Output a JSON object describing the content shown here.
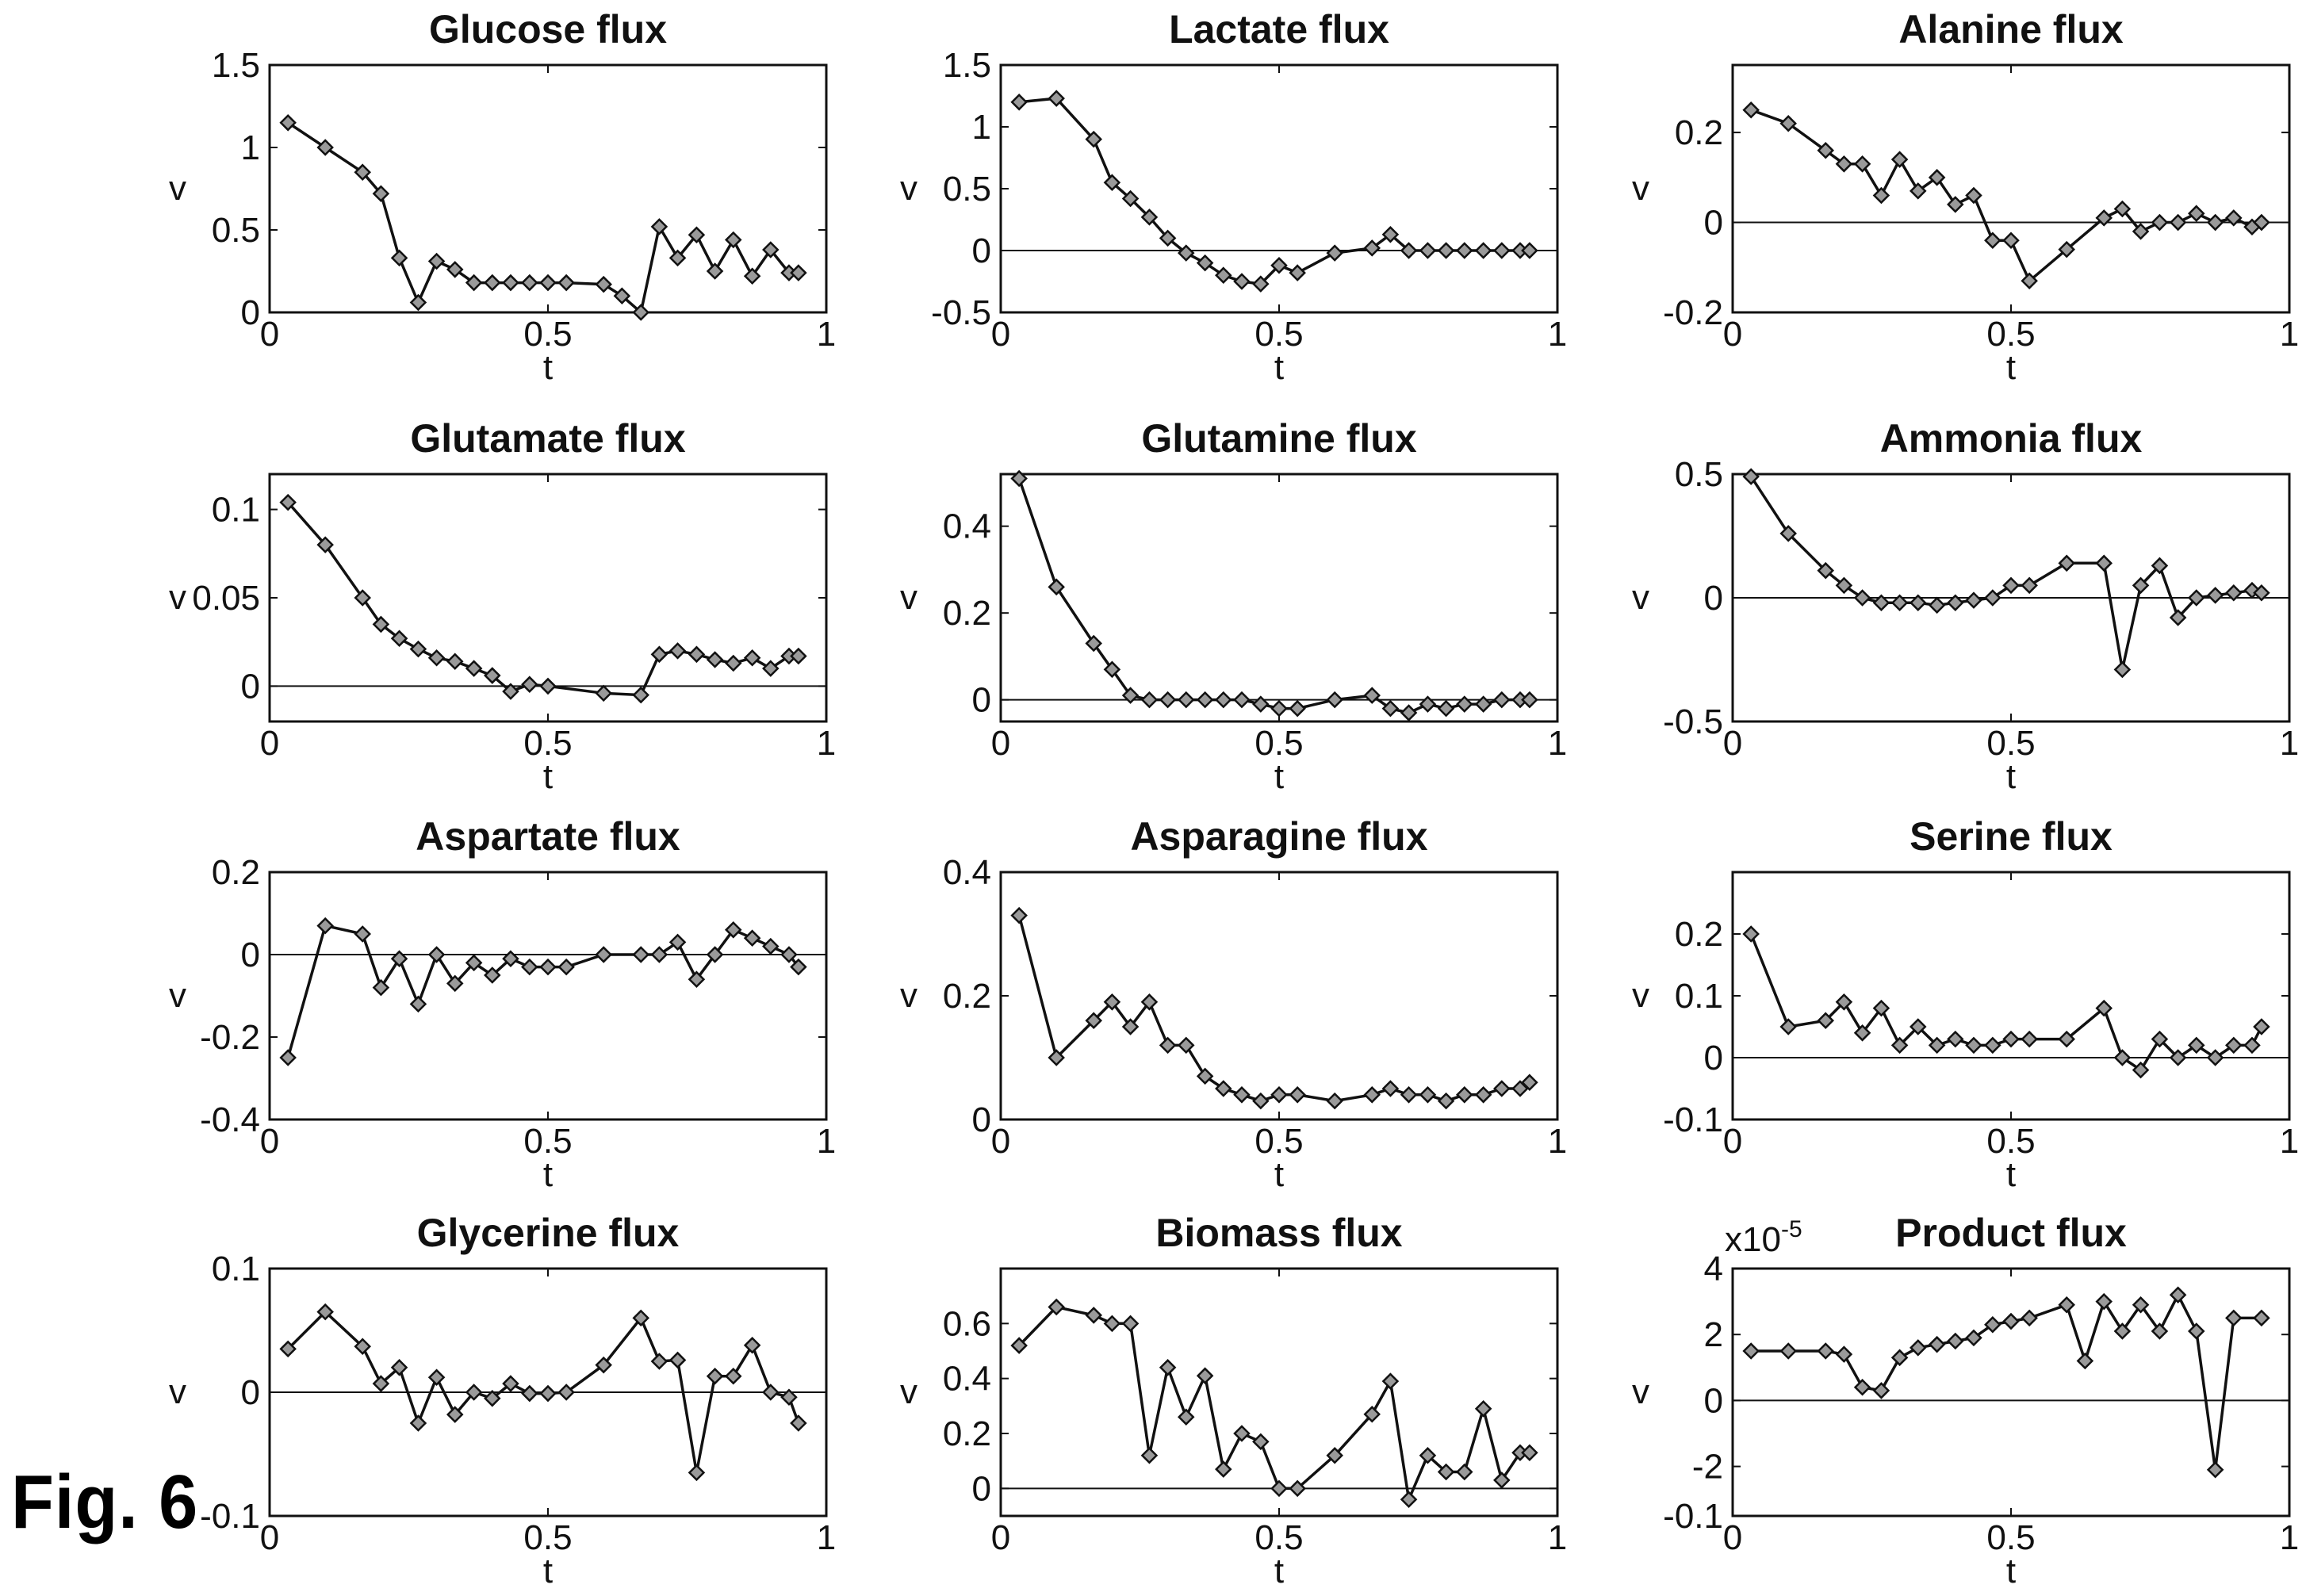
{
  "figure_label": "Fig. 6",
  "chart_data": [
    {
      "type": "line",
      "title": "Glucose flux",
      "xlabel": "t",
      "ylabel": "v",
      "xlim": [
        0,
        1
      ],
      "ylim": [
        0,
        1.5
      ],
      "xticks": [
        "0",
        "0.5",
        "1"
      ],
      "yticks": [
        {
          "v": 0,
          "l": "0"
        },
        {
          "v": 0.5,
          "l": "0.5"
        },
        {
          "v": 1,
          "l": "1"
        },
        {
          "v": 1.5,
          "l": "1.5"
        }
      ],
      "zero_line": false,
      "x": [
        0.033,
        0.1,
        0.167,
        0.2,
        0.233,
        0.267,
        0.3,
        0.333,
        0.367,
        0.4,
        0.433,
        0.467,
        0.5,
        0.533,
        0.6,
        0.633,
        0.667,
        0.7,
        0.733,
        0.767,
        0.8,
        0.833,
        0.867,
        0.9,
        0.933,
        0.95
      ],
      "y": [
        1.15,
        1.0,
        0.85,
        0.72,
        0.33,
        0.06,
        0.31,
        0.26,
        0.18,
        0.18,
        0.18,
        0.18,
        0.18,
        0.18,
        0.17,
        0.1,
        0.0,
        0.52,
        0.33,
        0.47,
        0.25,
        0.44,
        0.22,
        0.38,
        0.24,
        0.24
      ]
    },
    {
      "type": "line",
      "title": "Lactate flux",
      "xlabel": "t",
      "ylabel": "v",
      "xlim": [
        0,
        1
      ],
      "ylim": [
        -0.5,
        1.5
      ],
      "xticks": [
        "0",
        "0.5",
        "1"
      ],
      "yticks": [
        {
          "v": -0.5,
          "l": "-0.5"
        },
        {
          "v": 0,
          "l": "0"
        },
        {
          "v": 0.5,
          "l": "0.5"
        },
        {
          "v": 1,
          "l": "1"
        },
        {
          "v": 1.5,
          "l": "1.5"
        }
      ],
      "zero_line": true,
      "x": [
        0.033,
        0.1,
        0.167,
        0.2,
        0.233,
        0.267,
        0.3,
        0.333,
        0.367,
        0.4,
        0.433,
        0.467,
        0.5,
        0.533,
        0.6,
        0.667,
        0.7,
        0.733,
        0.767,
        0.8,
        0.833,
        0.867,
        0.9,
        0.933,
        0.95
      ],
      "y": [
        1.2,
        1.23,
        0.9,
        0.55,
        0.42,
        0.27,
        0.1,
        -0.02,
        -0.1,
        -0.2,
        -0.25,
        -0.27,
        -0.12,
        -0.18,
        -0.02,
        0.02,
        0.13,
        0.0,
        0.0,
        0.0,
        0.0,
        0.0,
        0.0,
        0.0,
        0.0
      ]
    },
    {
      "type": "line",
      "title": "Alanine flux",
      "xlabel": "t",
      "ylabel": "v",
      "xlim": [
        0,
        1
      ],
      "ylim": [
        -0.2,
        0.35
      ],
      "xticks": [
        "0",
        "0.5",
        "1"
      ],
      "yticks": [
        {
          "v": -0.2,
          "l": "-0.2"
        },
        {
          "v": 0,
          "l": "0"
        },
        {
          "v": 0.2,
          "l": "0.2"
        }
      ],
      "zero_line": true,
      "x": [
        0.033,
        0.1,
        0.167,
        0.2,
        0.233,
        0.267,
        0.3,
        0.333,
        0.367,
        0.4,
        0.433,
        0.467,
        0.5,
        0.533,
        0.6,
        0.667,
        0.7,
        0.733,
        0.767,
        0.8,
        0.833,
        0.867,
        0.9,
        0.933,
        0.95
      ],
      "y": [
        0.25,
        0.22,
        0.16,
        0.13,
        0.13,
        0.06,
        0.14,
        0.07,
        0.1,
        0.04,
        0.06,
        -0.04,
        -0.04,
        -0.13,
        -0.06,
        0.01,
        0.03,
        -0.02,
        0.0,
        0.0,
        0.02,
        0.0,
        0.01,
        -0.01,
        0.0
      ]
    },
    {
      "type": "line",
      "title": "Glutamate flux",
      "xlabel": "t",
      "ylabel": "v",
      "xlim": [
        0,
        1
      ],
      "ylim": [
        -0.02,
        0.12
      ],
      "xticks": [
        "0",
        "0.5",
        "1"
      ],
      "yticks": [
        {
          "v": 0,
          "l": "0"
        },
        {
          "v": 0.05,
          "l": "0.05"
        },
        {
          "v": 0.1,
          "l": "0.1"
        }
      ],
      "zero_line": true,
      "x": [
        0.033,
        0.1,
        0.167,
        0.2,
        0.233,
        0.267,
        0.3,
        0.333,
        0.367,
        0.4,
        0.433,
        0.467,
        0.5,
        0.6,
        0.667,
        0.7,
        0.733,
        0.767,
        0.8,
        0.833,
        0.867,
        0.9,
        0.933,
        0.95
      ],
      "y": [
        0.104,
        0.08,
        0.05,
        0.035,
        0.027,
        0.021,
        0.016,
        0.014,
        0.01,
        0.006,
        -0.003,
        0.001,
        0.0,
        -0.004,
        -0.005,
        0.018,
        0.02,
        0.018,
        0.015,
        0.013,
        0.016,
        0.01,
        0.017,
        0.017
      ]
    },
    {
      "type": "line",
      "title": "Glutamine flux",
      "xlabel": "t",
      "ylabel": "v",
      "xlim": [
        0,
        1
      ],
      "ylim": [
        -0.05,
        0.52
      ],
      "xticks": [
        "0",
        "0.5",
        "1"
      ],
      "yticks": [
        {
          "v": 0,
          "l": "0"
        },
        {
          "v": 0.2,
          "l": "0.2"
        },
        {
          "v": 0.4,
          "l": "0.4"
        }
      ],
      "zero_line": true,
      "x": [
        0.033,
        0.1,
        0.167,
        0.2,
        0.233,
        0.267,
        0.3,
        0.333,
        0.367,
        0.4,
        0.433,
        0.467,
        0.5,
        0.533,
        0.6,
        0.667,
        0.7,
        0.733,
        0.767,
        0.8,
        0.833,
        0.867,
        0.9,
        0.933,
        0.95
      ],
      "y": [
        0.51,
        0.26,
        0.13,
        0.07,
        0.01,
        0.0,
        0.0,
        0.0,
        0.0,
        0.0,
        0.0,
        -0.01,
        -0.02,
        -0.02,
        0.0,
        0.01,
        -0.02,
        -0.03,
        -0.01,
        -0.02,
        -0.01,
        -0.01,
        0.0,
        0.0,
        0.0
      ]
    },
    {
      "type": "line",
      "title": "Ammonia flux",
      "xlabel": "t",
      "ylabel": "v",
      "xlim": [
        0,
        1
      ],
      "ylim": [
        -0.5,
        0.5
      ],
      "xticks": [
        "0",
        "0.5",
        "1"
      ],
      "yticks": [
        {
          "v": -0.5,
          "l": "-0.5"
        },
        {
          "v": 0,
          "l": "0"
        },
        {
          "v": 0.5,
          "l": "0.5"
        }
      ],
      "zero_line": true,
      "x": [
        0.033,
        0.1,
        0.167,
        0.2,
        0.233,
        0.267,
        0.3,
        0.333,
        0.367,
        0.4,
        0.433,
        0.467,
        0.5,
        0.533,
        0.6,
        0.667,
        0.7,
        0.733,
        0.767,
        0.8,
        0.833,
        0.867,
        0.9,
        0.933,
        0.95
      ],
      "y": [
        0.49,
        0.26,
        0.11,
        0.05,
        0.0,
        -0.02,
        -0.02,
        -0.02,
        -0.03,
        -0.02,
        -0.01,
        0.0,
        0.05,
        0.05,
        0.14,
        0.14,
        -0.29,
        0.05,
        0.13,
        -0.08,
        0.0,
        0.01,
        0.02,
        0.03,
        0.02
      ]
    },
    {
      "type": "line",
      "title": "Aspartate flux",
      "xlabel": "t",
      "ylabel": "v",
      "xlim": [
        0,
        1
      ],
      "ylim": [
        -0.4,
        0.2
      ],
      "xticks": [
        "0",
        "0.5",
        "1"
      ],
      "yticks": [
        {
          "v": -0.4,
          "l": "-0.4"
        },
        {
          "v": -0.2,
          "l": "-0.2"
        },
        {
          "v": 0,
          "l": "0"
        },
        {
          "v": 0.2,
          "l": "0.2"
        }
      ],
      "zero_line": true,
      "x": [
        0.033,
        0.1,
        0.167,
        0.2,
        0.233,
        0.267,
        0.3,
        0.333,
        0.367,
        0.4,
        0.433,
        0.467,
        0.5,
        0.533,
        0.6,
        0.667,
        0.7,
        0.733,
        0.767,
        0.8,
        0.833,
        0.867,
        0.9,
        0.933,
        0.95
      ],
      "y": [
        -0.25,
        0.07,
        0.05,
        -0.08,
        -0.01,
        -0.12,
        0.0,
        -0.07,
        -0.02,
        -0.05,
        -0.01,
        -0.03,
        -0.03,
        -0.03,
        0.0,
        0.0,
        0.0,
        0.03,
        -0.06,
        0.0,
        0.06,
        0.04,
        0.02,
        0.0,
        -0.03
      ]
    },
    {
      "type": "line",
      "title": "Asparagine flux",
      "xlabel": "t",
      "ylabel": "v",
      "xlim": [
        0,
        1
      ],
      "ylim": [
        0,
        0.4
      ],
      "xticks": [
        "0",
        "0.5",
        "1"
      ],
      "yticks": [
        {
          "v": 0,
          "l": "0"
        },
        {
          "v": 0.2,
          "l": "0.2"
        },
        {
          "v": 0.4,
          "l": "0.4"
        }
      ],
      "zero_line": false,
      "x": [
        0.033,
        0.1,
        0.167,
        0.2,
        0.233,
        0.267,
        0.3,
        0.333,
        0.367,
        0.4,
        0.433,
        0.467,
        0.5,
        0.533,
        0.6,
        0.667,
        0.7,
        0.733,
        0.767,
        0.8,
        0.833,
        0.867,
        0.9,
        0.933,
        0.95
      ],
      "y": [
        0.33,
        0.1,
        0.16,
        0.19,
        0.15,
        0.19,
        0.12,
        0.12,
        0.07,
        0.05,
        0.04,
        0.03,
        0.04,
        0.04,
        0.03,
        0.04,
        0.05,
        0.04,
        0.04,
        0.03,
        0.04,
        0.04,
        0.05,
        0.05,
        0.06
      ]
    },
    {
      "type": "line",
      "title": "Serine flux",
      "xlabel": "t",
      "ylabel": "v",
      "xlim": [
        0,
        1
      ],
      "ylim": [
        -0.1,
        0.3
      ],
      "xticks": [
        "0",
        "0.5",
        "1"
      ],
      "yticks": [
        {
          "v": -0.1,
          "l": "-0.1"
        },
        {
          "v": 0,
          "l": "0"
        },
        {
          "v": 0.1,
          "l": "0.1"
        },
        {
          "v": 0.2,
          "l": "0.2"
        }
      ],
      "zero_line": true,
      "x": [
        0.033,
        0.1,
        0.167,
        0.2,
        0.233,
        0.267,
        0.3,
        0.333,
        0.367,
        0.4,
        0.433,
        0.467,
        0.5,
        0.533,
        0.6,
        0.667,
        0.7,
        0.733,
        0.767,
        0.8,
        0.833,
        0.867,
        0.9,
        0.933,
        0.95
      ],
      "y": [
        0.2,
        0.05,
        0.06,
        0.09,
        0.04,
        0.08,
        0.02,
        0.05,
        0.02,
        0.03,
        0.02,
        0.02,
        0.03,
        0.03,
        0.03,
        0.08,
        0.0,
        -0.02,
        0.03,
        0.0,
        0.02,
        0.0,
        0.02,
        0.02,
        0.05
      ]
    },
    {
      "type": "line",
      "title": "Glycerine flux",
      "xlabel": "t",
      "ylabel": "v",
      "xlim": [
        0,
        1
      ],
      "ylim": [
        -0.1,
        0.1
      ],
      "xticks": [
        "0",
        "0.5",
        "1"
      ],
      "yticks": [
        {
          "v": -0.1,
          "l": "-0.1"
        },
        {
          "v": 0,
          "l": "0"
        },
        {
          "v": 0.1,
          "l": "0.1"
        }
      ],
      "zero_line": true,
      "x": [
        0.033,
        0.1,
        0.167,
        0.2,
        0.233,
        0.267,
        0.3,
        0.333,
        0.367,
        0.4,
        0.433,
        0.467,
        0.5,
        0.533,
        0.6,
        0.667,
        0.7,
        0.733,
        0.767,
        0.8,
        0.833,
        0.867,
        0.9,
        0.933,
        0.95
      ],
      "y": [
        0.035,
        0.065,
        0.037,
        0.007,
        0.02,
        -0.025,
        0.012,
        -0.018,
        0.0,
        -0.005,
        0.007,
        -0.001,
        -0.001,
        0.0,
        0.022,
        0.06,
        0.025,
        0.026,
        -0.065,
        0.013,
        0.013,
        0.038,
        0.0,
        -0.004,
        -0.025
      ]
    },
    {
      "type": "line",
      "title": "Biomass flux",
      "xlabel": "t",
      "ylabel": "v",
      "xlim": [
        0,
        1
      ],
      "ylim": [
        -0.1,
        0.8
      ],
      "xticks": [
        "0",
        "0.5",
        "1"
      ],
      "yticks": [
        {
          "v": 0,
          "l": "0"
        },
        {
          "v": 0.2,
          "l": "0.2"
        },
        {
          "v": 0.4,
          "l": "0.4"
        },
        {
          "v": 0.6,
          "l": "0.6"
        }
      ],
      "zero_line": true,
      "x": [
        0.033,
        0.1,
        0.167,
        0.2,
        0.233,
        0.267,
        0.3,
        0.333,
        0.367,
        0.4,
        0.433,
        0.467,
        0.5,
        0.533,
        0.6,
        0.667,
        0.7,
        0.733,
        0.767,
        0.8,
        0.833,
        0.867,
        0.9,
        0.933,
        0.95
      ],
      "y": [
        0.52,
        0.66,
        0.63,
        0.6,
        0.6,
        0.12,
        0.44,
        0.26,
        0.41,
        0.07,
        0.2,
        0.17,
        0.0,
        0.0,
        0.12,
        0.27,
        0.39,
        -0.04,
        0.12,
        0.06,
        0.06,
        0.29,
        0.03,
        0.13,
        0.13
      ]
    },
    {
      "type": "line",
      "title": "Product flux",
      "xlabel": "t",
      "ylabel": "v",
      "scale_label": "x10",
      "scale_exp": "-5",
      "xlim": [
        0,
        1
      ],
      "ylim": [
        -3.5,
        4
      ],
      "xticks": [
        "0",
        "0.5",
        "1"
      ],
      "yticks": [
        {
          "v": -3.5,
          "l": "-0.1"
        },
        {
          "v": -2,
          "l": "-2"
        },
        {
          "v": 0,
          "l": "0"
        },
        {
          "v": 2,
          "l": "2"
        },
        {
          "v": 4,
          "l": "4"
        }
      ],
      "zero_line": true,
      "x": [
        0.033,
        0.1,
        0.167,
        0.2,
        0.233,
        0.267,
        0.3,
        0.333,
        0.367,
        0.4,
        0.433,
        0.467,
        0.5,
        0.533,
        0.6,
        0.633,
        0.667,
        0.7,
        0.733,
        0.767,
        0.8,
        0.833,
        0.867,
        0.9,
        0.95
      ],
      "y": [
        1.5,
        1.5,
        1.5,
        1.4,
        0.4,
        0.3,
        1.3,
        1.6,
        1.7,
        1.8,
        1.9,
        2.3,
        2.4,
        2.5,
        2.9,
        1.2,
        3.0,
        2.1,
        2.9,
        2.1,
        3.2,
        2.1,
        -2.1,
        2.5,
        2.5
      ]
    }
  ]
}
